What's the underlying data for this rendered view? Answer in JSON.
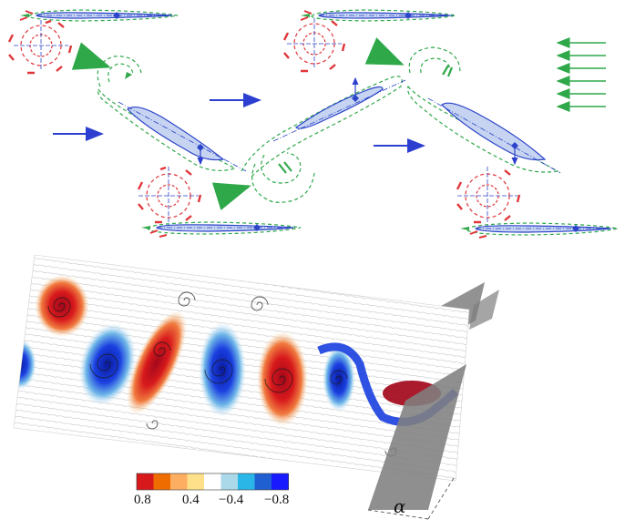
{
  "colorbar": {
    "colors": [
      "#d7191c",
      "#ef6c00",
      "#fdae61",
      "#fee08b",
      "#ffffff",
      "#abd9e9",
      "#2bb6e8",
      "#1f5fd1",
      "#1a1aff"
    ],
    "tick_labels": [
      "0.8",
      "0.4",
      "−0.4",
      "−0.8"
    ]
  },
  "angle_label": "α",
  "colors": {
    "foil_fill": "#c6d4f2",
    "foil_stroke": "#2c44c8",
    "streamline": "#2fa84a",
    "freestream_arrow": "#2c3fd0",
    "incoming_flow_arrow": "#2fa84a",
    "vortex_ring": "#e0363a",
    "plate": "#8a8a8a"
  }
}
